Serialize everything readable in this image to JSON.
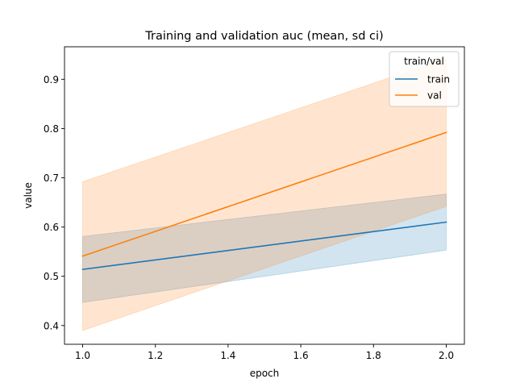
{
  "chart_data": {
    "type": "line",
    "title": "Training and validation auc (mean, sd ci)",
    "xlabel": "epoch",
    "ylabel": "value",
    "xlim": [
      0.95,
      2.05
    ],
    "ylim": [
      0.362,
      0.966
    ],
    "xticks": [
      1.0,
      1.2,
      1.4,
      1.6,
      1.8,
      2.0
    ],
    "xtick_labels": [
      "1.0",
      "1.2",
      "1.4",
      "1.6",
      "1.8",
      "2.0"
    ],
    "yticks": [
      0.4,
      0.5,
      0.6,
      0.7,
      0.8,
      0.9
    ],
    "ytick_labels": [
      "0.4",
      "0.5",
      "0.6",
      "0.7",
      "0.8",
      "0.9"
    ],
    "grid": false,
    "legend": {
      "title": "train/val",
      "placement": "top-right"
    },
    "series": [
      {
        "name": "train",
        "color": "#1f77b4",
        "x": [
          1.0,
          2.0
        ],
        "y": [
          0.514,
          0.61
        ],
        "ci_lower": [
          0.447,
          0.553
        ],
        "ci_upper": [
          0.581,
          0.667
        ]
      },
      {
        "name": "val",
        "color": "#ff7f0e",
        "x": [
          1.0,
          2.0
        ],
        "y": [
          0.541,
          0.792
        ],
        "ci_lower": [
          0.39,
          0.642
        ],
        "ci_upper": [
          0.692,
          0.942
        ]
      }
    ]
  }
}
